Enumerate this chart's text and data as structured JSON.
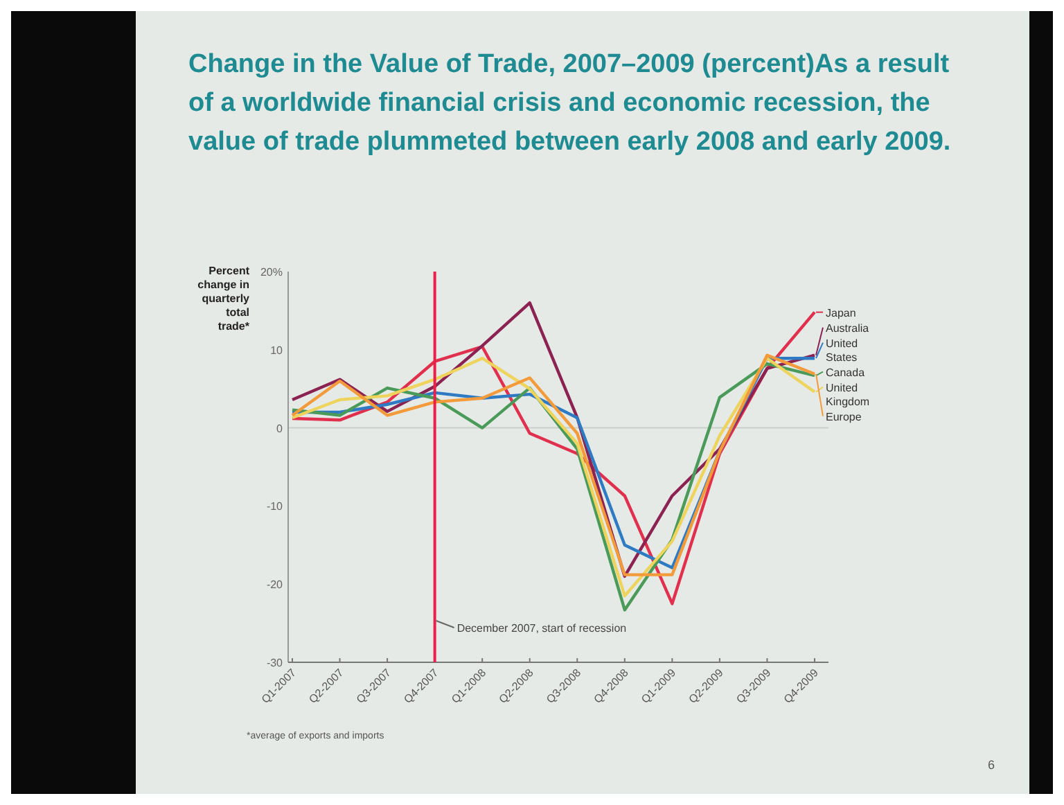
{
  "chart_data": {
    "type": "line",
    "title": "Change in the Value of Trade, 2007–2009 (percent)As a result of a worldwide financial crisis and economic recession, the value of trade plummeted between early 2008 and early 2009.",
    "ylabel": "Percent change in quarterly total trade*",
    "categories": [
      "Q1-2007",
      "Q2-2007",
      "Q3-2007",
      "Q4-2007",
      "Q1-2008",
      "Q2-2008",
      "Q3-2008",
      "Q4-2008",
      "Q1-2009",
      "Q2-2009",
      "Q3-2009",
      "Q4-2009"
    ],
    "series": [
      {
        "name": "Japan",
        "color": "#e0304e",
        "values": [
          1.2,
          1.0,
          3.3,
          8.5,
          10.4,
          -0.7,
          -3.3,
          -8.7,
          -22.5,
          -3.3,
          7.6,
          14.8
        ]
      },
      {
        "name": "Australia",
        "color": "#8b2252",
        "values": [
          3.6,
          6.2,
          2.1,
          5.3,
          10.5,
          16,
          1.3,
          -19,
          -8.7,
          -2.7,
          7.6,
          9.3
        ]
      },
      {
        "name": "United States",
        "color": "#2e7bc4",
        "values": [
          2,
          2,
          3,
          4.5,
          3.8,
          4.3,
          1.3,
          -15,
          -17.9,
          -3,
          8.9,
          8.9
        ]
      },
      {
        "name": "Canada",
        "color": "#4a9a5a",
        "values": [
          2.3,
          1.6,
          5.1,
          3.8,
          0,
          5.1,
          -2.7,
          -23.3,
          -14.3,
          3.9,
          8.2,
          6.7
        ]
      },
      {
        "name": "United Kingdom",
        "color": "#eed35c",
        "values": [
          1.3,
          3.6,
          4.1,
          6.2,
          8.9,
          5,
          -2,
          -21.5,
          -14.5,
          -1,
          8.9,
          4.6
        ]
      },
      {
        "name": "Europe",
        "color": "#f39a3a",
        "values": [
          1.6,
          6,
          1.6,
          3.3,
          3.8,
          6.4,
          -0.7,
          -18.8,
          -18.8,
          -3,
          9.3,
          6.9
        ]
      }
    ],
    "ylim": [
      -30,
      20
    ],
    "yticks": [
      {
        "value": 20,
        "label": "20%"
      },
      10,
      0,
      -10,
      -20,
      -30
    ],
    "ref_lines": [
      {
        "axis": "x",
        "value": "Q4-2007",
        "label": "December 2007, start of recession",
        "color": "#e8204a"
      },
      {
        "axis": "y",
        "value": 0,
        "color": "#c8cfc8"
      }
    ],
    "legend": "right",
    "annotations": [
      "*average of exports and imports",
      "6"
    ]
  }
}
